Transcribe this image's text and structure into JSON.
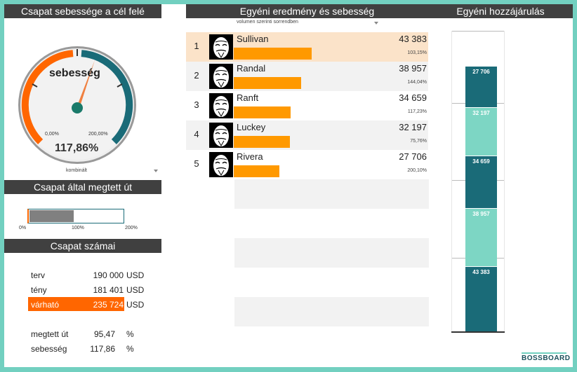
{
  "panels": {
    "speed_title": "Csapat sebessége a cél felé",
    "individual_title": "Egyéni eredmény és sebesség",
    "contribution_title": "Egyéni hozzájárulás",
    "distance_title": "Csapat által megtett út",
    "numbers_title": "Csapat számai"
  },
  "gauge": {
    "label": "sebesség",
    "value_text": "117,86%",
    "min_label": "0,00%",
    "max_label": "200,00%",
    "value_fraction": 0.5893,
    "colors": {
      "left": "#ff6600",
      "right": "#1a6b78",
      "needle": "#f08040",
      "hub": "#1a7a6a"
    }
  },
  "gauge_selector": {
    "value": "kombinált"
  },
  "sort_selector": {
    "value": "volumen szerinti sorrendben"
  },
  "distance": {
    "fill_fraction": 0.4774,
    "ticks": [
      "0%",
      "100%",
      "200%"
    ]
  },
  "people": [
    {
      "rank": "1",
      "name": "Sullivan",
      "value": "43 383",
      "pct": "103,15%",
      "bar_fraction": 0.6,
      "highlight": true
    },
    {
      "rank": "2",
      "name": "Randal",
      "value": "38 957",
      "pct": "144,04%",
      "bar_fraction": 0.52,
      "highlight": false
    },
    {
      "rank": "3",
      "name": "Ranft",
      "value": "34 659",
      "pct": "117,23%",
      "bar_fraction": 0.44,
      "highlight": false
    },
    {
      "rank": "4",
      "name": "Luckey",
      "value": "32 197",
      "pct": "75,76%",
      "bar_fraction": 0.43,
      "highlight": false
    },
    {
      "rank": "5",
      "name": "Rivera",
      "value": "27 706",
      "pct": "200,10%",
      "bar_fraction": 0.35,
      "highlight": false
    }
  ],
  "numbers": {
    "plan": {
      "label": "terv",
      "value": "190 000",
      "unit": "USD"
    },
    "actual": {
      "label": "tény",
      "value": "181 401",
      "unit": "USD"
    },
    "expected": {
      "label": "várható",
      "value": "235 724",
      "unit": "USD"
    },
    "distance": {
      "label": "megtett út",
      "value": "95,47",
      "unit": "%"
    },
    "speed": {
      "label": "sebesség",
      "value": "117,86",
      "unit": "%"
    }
  },
  "contribution": {
    "segments": [
      {
        "value": "27 706",
        "color": "#1a6b78"
      },
      {
        "value": "32 197",
        "color": "#7dd6c4"
      },
      {
        "value": "34 659",
        "color": "#1a6b78"
      },
      {
        "value": "38 957",
        "color": "#7dd6c4"
      },
      {
        "value": "43 383",
        "color": "#1a6b78"
      }
    ]
  },
  "brand": {
    "logo_text": "BOSSBOARD"
  },
  "colors": {
    "accent": "#ff6600",
    "bar": "#ff9900",
    "teal_dark": "#1a6b78",
    "teal_light": "#7dd6c4",
    "header": "#404040",
    "highlight_row": "#fbe3c9"
  }
}
